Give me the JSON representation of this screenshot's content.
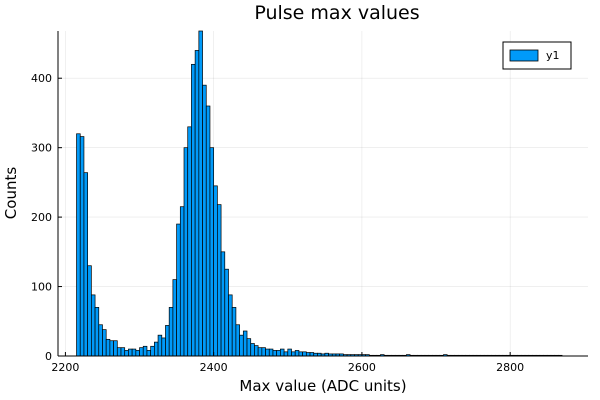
{
  "chart_data": {
    "type": "bar",
    "title": "Pulse max values",
    "xlabel": "Max value (ADC units)",
    "ylabel": "Counts",
    "xlim": [
      2190,
      2905
    ],
    "ylim": [
      0,
      468
    ],
    "x_ticks": [
      2200,
      2400,
      2600,
      2800
    ],
    "y_ticks": [
      0,
      100,
      200,
      300,
      400
    ],
    "grid": true,
    "legend": "top-right",
    "bin_start": 2215,
    "bin_width": 5,
    "series": [
      {
        "name": "y1",
        "color": "#009AF9",
        "values": [
          320,
          316,
          264,
          130,
          88,
          70,
          45,
          38,
          24,
          22,
          22,
          12,
          12,
          8,
          10,
          10,
          8,
          12,
          14,
          8,
          14,
          20,
          30,
          26,
          44,
          70,
          110,
          190,
          215,
          300,
          330,
          420,
          440,
          468,
          390,
          360,
          300,
          245,
          218,
          150,
          125,
          88,
          70,
          45,
          30,
          36,
          25,
          18,
          15,
          12,
          12,
          10,
          10,
          8,
          8,
          10,
          6,
          10,
          6,
          8,
          6,
          6,
          5,
          5,
          4,
          4,
          3,
          4,
          3,
          3,
          3,
          3,
          2,
          2,
          2,
          2,
          2,
          2,
          2,
          1,
          1,
          1,
          2,
          1,
          1,
          1,
          1,
          1,
          1,
          2,
          1,
          1,
          1,
          1,
          1,
          1,
          1,
          1,
          1,
          2,
          1,
          1,
          1,
          1,
          1,
          1,
          1,
          1,
          1,
          1,
          1,
          1,
          1,
          1,
          1,
          1,
          1,
          1,
          1,
          1,
          1,
          1,
          1,
          1,
          1,
          1,
          1,
          1,
          1,
          1,
          1
        ]
      }
    ]
  }
}
